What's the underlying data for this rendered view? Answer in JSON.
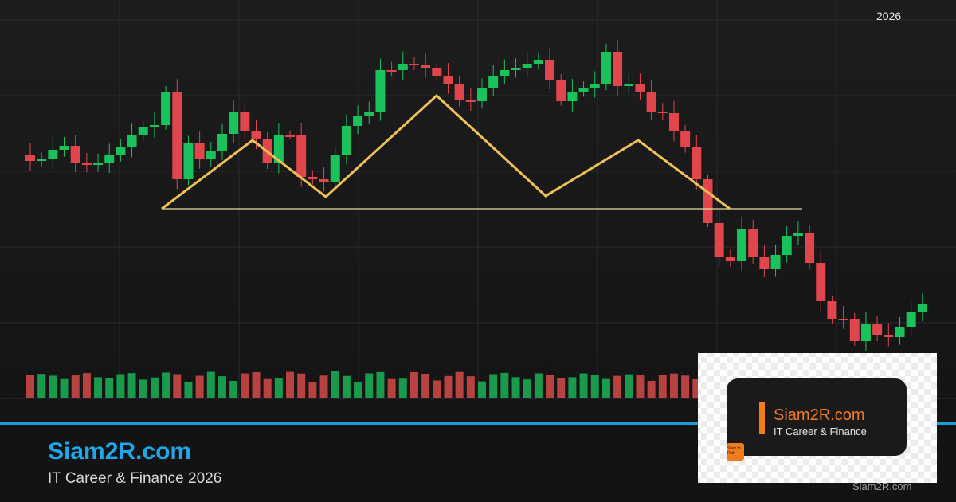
{
  "header": {
    "year": "2026"
  },
  "footer": {
    "brand": "Siam2R.com",
    "tagline": "IT Career & Finance 2026",
    "watermark": "Siam2R.com"
  },
  "card": {
    "brand": "Siam2R.com",
    "tagline": "IT Career & Finance",
    "icon_text": "Siam to Rich"
  }
}
